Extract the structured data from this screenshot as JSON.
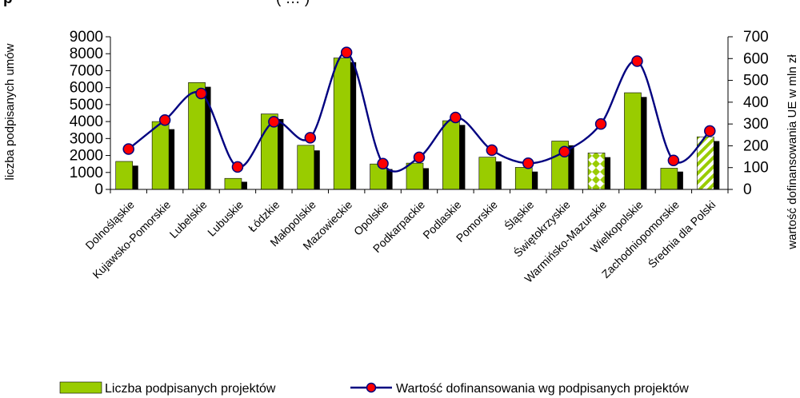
{
  "chart_data": {
    "type": "bar+line",
    "title_fragment_left": "p",
    "title_fragment_right": "( … )",
    "categories": [
      "Dolnośląskie",
      "Kujawsko-Pomorskie",
      "Lubelskie",
      "Lubuskie",
      "Łódzkie",
      "Małopolskie",
      "Mazowieckie",
      "Opolskie",
      "Podkarpackie",
      "Podlaskie",
      "Pomorskie",
      "Śląskie",
      "Świętokrzyskie",
      "Warmińsko-Mazurskie",
      "Wielkopolskie",
      "Zachodniopomorskie",
      "Średnia dla Polski"
    ],
    "series": [
      {
        "name": "Liczba podpisanych projektów",
        "axis": "left",
        "kind": "bar",
        "color": "#99cc00",
        "values": [
          1650,
          4000,
          6300,
          650,
          4450,
          2600,
          7750,
          1500,
          1550,
          4050,
          1900,
          1300,
          2850,
          2150,
          5700,
          1250,
          3100
        ],
        "shadow_values": [
          1400,
          3550,
          6050,
          450,
          4150,
          2300,
          7500,
          1200,
          1250,
          3800,
          1650,
          1050,
          2600,
          1900,
          5450,
          1050,
          2850
        ],
        "patterned_categories": [
          "Warmińsko-Mazurskie",
          "Średnia dla Polski"
        ]
      },
      {
        "name": "Wartość dofinansowania wg podpisanych projektów",
        "axis": "right",
        "kind": "line",
        "color": "#000080",
        "marker_color": "#ff0000",
        "values": [
          185,
          318,
          440,
          103,
          310,
          237,
          628,
          118,
          147,
          330,
          180,
          120,
          173,
          300,
          588,
          133,
          268
        ]
      }
    ],
    "yaxis_left": {
      "label": "liczba podpisanych umów",
      "ylim": [
        0,
        9000
      ],
      "ticks": [
        "0",
        "1000",
        "2000",
        "3000",
        "4000",
        "5000",
        "6000",
        "7000",
        "8000",
        "9000"
      ]
    },
    "yaxis_right": {
      "label": "wartość dofinansowania UE w mln zł",
      "ylim": [
        0,
        700
      ],
      "ticks": [
        "0",
        "100",
        "200",
        "300",
        "400",
        "500",
        "600",
        "700"
      ]
    },
    "grid": false,
    "legend": "bottom"
  }
}
